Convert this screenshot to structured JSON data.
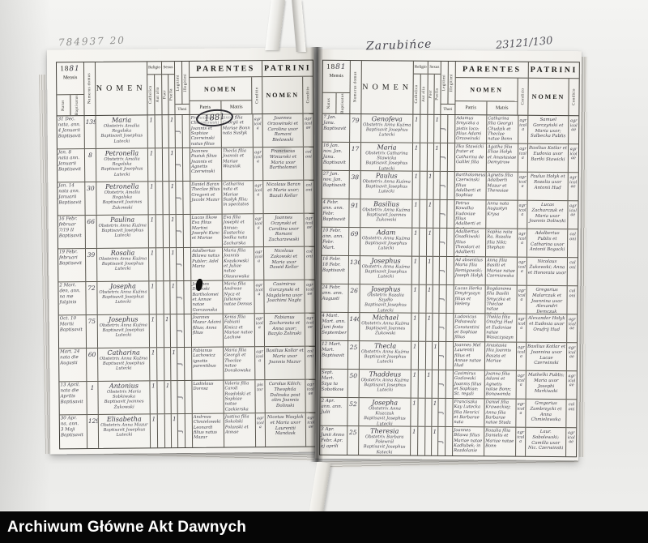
{
  "footer": {
    "label": "Archiwum Główne Akt Dawnych"
  },
  "annotations": {
    "pencil_number": "784937  20",
    "place_title": "Zarubińce",
    "page_number": "23121/130",
    "year_circled": "1881"
  },
  "register_header": {
    "year_printed": "18",
    "year_hw": "81",
    "mensis": "Mensis",
    "natus": "Natus",
    "baptisatus": "Baptisatus",
    "numerus_domus": "Numerus domus",
    "nomen": "NOMEN",
    "religio": "Religio",
    "catholica": "Catholica",
    "aut_alia": "Aut alia",
    "sexus": "Sexus",
    "puer": "Puer",
    "puella": "Puella",
    "thori": "Thori",
    "legitimi": "Legitimi",
    "illegitimi": "Illegitimi",
    "parentes": "PARENTES",
    "parentes_nomen": "NOMEN",
    "patris": "Patris",
    "matris": "Matris",
    "conditio": "Conditio",
    "patrini": "PATRINI",
    "patrini_nomen": "NOMEN",
    "conditio2": "Conditio"
  },
  "marks": {
    "religio": "1",
    "sexus": "1",
    "thori": "ʃ"
  },
  "pages": {
    "left": {
      "rows": [
        {
          "date": "31 Dec.\nnata, ann.\n4 Januarii\nBaptisavit",
          "domus": "139",
          "name": "Maria",
          "obst": "Obstetrix Amalia Rogalska",
          "bapt": "Baptisavit Josephus Lutecki",
          "sexus": "puella",
          "patris": "Franciscus Chwastowski Joannis et Sophiae Czerwinski natus filius",
          "matris": "Anna filia Georgii et Mariae Bonn nata Susłyk",
          "cond1": "agricola",
          "patrini": "Joannes Orzowinski et Carolina uxor Romani Bielawski",
          "cond2": "agricolae"
        },
        {
          "date": "Jan. 8\nnata ann.\nJanuarii\nBaptisavit",
          "domus": "8",
          "name": "Petronella",
          "obst": "Obstetrix Amalia Rogalska",
          "bapt": "Baptisavit Josephus Lutecki",
          "sexus": "puella",
          "patris": "Joannes Paziuk filius Joannis et Agnetis Czerwinski",
          "matris": "Thecla filia Joannis et Mariae Wozniak",
          "cond1": "agricola",
          "patrini": "Franciscus Winiarski et Maria uxor Bartholomei",
          "cond2": "coloni"
        },
        {
          "date": "Jan. 14\nnata ann.\nJanuarii\nBaptisavit",
          "domus": "30",
          "name": "Petronella",
          "obst": "Obstetrix Amalia Rogalska",
          "bapt": "Baptisavit Joannes Żukowski",
          "sexus": "puella",
          "patris": "Daniel Baran Theclae filius Gregorii et Jacobi Mazur",
          "matris": "Catharina nata et Mariae Susłyk filia; in spectatos",
          "cond1": "agricola",
          "patrini": "Nicolaus Baran et Maria uxor; Bazali Kellar",
          "cond2": "coloni"
        },
        {
          "date": "16 Febr.\nfebruar\n7/19 II\nBaptisavit",
          "domus": "66",
          "name": "Paulina",
          "obst": "Obstetrix Anna Kuźma",
          "bapt": "Baptisavit Josephus Lutecki",
          "sexus": "puella",
          "patris": "Lucas Ilkow Eva filius Martini Josephi Kunc et Mariae",
          "matris": "Eva filia Josephi et Annae; Eustachia bedka nata Zacharska",
          "cond1": "agricola",
          "patrini": "Joannes Oczynski et Carolina uxor Romani Zacharzewski",
          "cond2": "agricolae"
        },
        {
          "date": "19 Febr.\nfebruari\nBaptisavit",
          "domus": "39",
          "name": "Rosalia",
          "obst": "Obstetrix Anna Kuźma",
          "bapt": "Baptisavit Josephus Lutecki",
          "sexus": "puella",
          "patris": "Adalbertus Bilawa natus Publer; Adel Maria",
          "matris": "Maria filia Joannis Kozakowski et Juliae natae Olesnowska",
          "cond1": "agricola",
          "patrini": "Nicolaus Zakowski et Maria uxor Dawid Kellar",
          "cond2": "coloni"
        },
        {
          "date": "2 Mart.\nden, ann.\nna me\nfulginis",
          "domus": "72",
          "name": "Josepha",
          "obst": "Obstetrix Anna Kuźma",
          "bapt": "Baptisavit Josephus Lutecki",
          "sexus": "puella",
          "patris": "Joannes Dolinski Bartholomei et Annae natae Gorczanska filius",
          "matris": "Maria filia Andreae Nycz et Julianae natae Demus",
          "cond1": "agricola",
          "patrini": "Casimirus Gorczynski et Magdalena uxor Joachimi Nagła",
          "cond2": "agricolae"
        },
        {
          "date": "Oct. 10\nMartii\nBaptisavit",
          "domus": "75",
          "name": "Josephus",
          "obst": "Obstetrix Anna Kuźma",
          "bapt": "Baptisavit Josephus Lutecki",
          "sexus": "puer",
          "patris": "Joannes Mazur Adami filius; Anna filius",
          "matris": "Xenia filia Fabiani Kmicz et Mariae natae Lachow",
          "cond1": "agricola",
          "patrini": "Fabianus Zacharzata et Anna uxor; Bazylo Żolinski",
          "cond2": "agricolae"
        },
        {
          "date": "Mart. 24\nnata die\nAugusti",
          "domus": "60",
          "name": "Catharina",
          "obst": "Obstetrix Anna Kuźma",
          "bapt": "Baptisavit Josephus Lutecki",
          "sexus": "puella",
          "patris": "Fabianus Lachowicz ignotis parentibus",
          "matris": "Maria filia Georgii et Theclae natae Dorakowska",
          "cond1": "agricola",
          "patrini": "Basilius Kollar et Maria uxor Joannis Mazur",
          "cond2": "coloni"
        },
        {
          "date": "13 April.\nnata die\nAprilis\nBaptisavit",
          "domus": "1",
          "name": "Antonius",
          "obst": "Obstetrix Maria Sobkiwska",
          "bapt": "Baptisavit Joannes Żukowski",
          "sexus": "puer",
          "patris": "Ladislaus Dorosz",
          "matris": "Valeria filia Caroli Rozdolski et Sophiae natae Czekierska",
          "cond1": "pistor",
          "patrini": "Carolus Kilich; Theophila Dolinska post olim Joannis Dolinski",
          "cond2": "agricolae"
        },
        {
          "date": "30 Apr.\nna, ann.\n3 Maji\nBaptisavit",
          "domus": "129",
          "name": "Elisabetha",
          "obst": "Obstetrix Anna Mazur",
          "bapt": "Baptisavit Josephus Lutecki",
          "sexus": "puella",
          "patris": "Andreas Chmielowski Leonardi filius natus Mazur",
          "matris": "Justina filia Sokolski Polanski et Annae",
          "cond1": "agricola",
          "patrini": "Nicetas Wasylak et Maria uxor Laurentii Mandask",
          "cond2": "agricolae"
        }
      ]
    },
    "right": {
      "rows": [
        {
          "date": "7 Jan.\nJanu.\nBaptisavit",
          "domus": "79",
          "name": "Genofeva",
          "obst": "Obstetrix Anna Kuźma",
          "bapt": "Baptisavit Josephus Lutecki",
          "sexus": "puella",
          "patris": "Adamus Smyczka a pistis loco; filius Adami Orzowinski",
          "matris": "Catharina filia Georgii Chudzik et Theclae natae Bonn",
          "cond1": "agricola",
          "patrini": "Samuel Gorczyński et Maria uxor; Salbecka Publis",
          "cond2": "agricolae"
        },
        {
          "date": "16 Jan.\nnov. Jan.\nJanu.\nBaptisavit",
          "domus": "17",
          "name": "Maria",
          "obst": "Obstetrix Catharina Stawicka",
          "bapt": "Baptisavit Josephus Lutecki",
          "sexus": "puella",
          "patris": "Ilko Stawicki frater et Catharina de Galilei filia",
          "matris": "Agatha filia Eliae Hołyk et Anastasiae Demytrow",
          "cond1": "agricola",
          "patrini": "Basilius Kotlar et Eudoxia uxor Bartki Stawicki",
          "cond2": "agricolae"
        },
        {
          "date": "27 Jan.\nnov. Jan.\nBaptisavit",
          "domus": "38",
          "name": "Paulus",
          "obst": "Obstetrix Anna Kuźma",
          "bapt": "Baptisavit Josephus Lutecki",
          "sexus": "puer",
          "patris": "Bartholomeus Czerwinski filius Adalberti et Sophiae",
          "matris": "Agnetis filia Adalberti Mazur et Theresiae",
          "cond1": "agricola",
          "patrini": "Paulus Hołyk et Rozalia uxor Antonii Hud",
          "cond2": "agricolae"
        },
        {
          "date": "4 Febr.\nann. ann.\nFebr.\nBaptisavit",
          "domus": "91",
          "name": "Basilius",
          "obst": "Obstetrix Anna Kuźma",
          "bapt": "Baptisavit Joannes Żukowski",
          "sexus": "puer",
          "patris": "Petrus Kowalko Eudoxiae filius Adalberti et Catharinae; daniłowa filius",
          "matris": "Anna nata Augustyn Krysa",
          "cond1": "agricola",
          "patrini": "Lucas Zacharczuk et Maria uxor Joannis Doliwski",
          "cond2": "agricolae"
        },
        {
          "date": "10 Febr.\nann. ann.\nFebr. Mart.",
          "domus": "69",
          "name": "Adam",
          "obst": "Obstetrix Anna Kuźma",
          "bapt": "Baptisavit Josephus Lutecki",
          "sexus": "puer",
          "patris": "Adalbertus Osadkiwski filius Theodori et Adalberti Caroli",
          "matris": "Sophia nata Ra, Rozalia filia Nikt; Stephan",
          "cond1": "agricola",
          "patrini": "Adalbertus Publis et Catharina uxor Antonii Bogacki",
          "cond2": "coloni"
        },
        {
          "date": "16 Febr.\n18 Febr.\nBaptisavit",
          "domus": "130",
          "name": "Josephus",
          "obst": "Obstetrix Anna Kuźma",
          "bapt": "Baptisavit Josephus Lutecki",
          "sexus": "puer",
          "patris": "Ad absentius Maria filia Remigowski; Joseph Hołyk",
          "matris": "Anna filia Basilii et Mariae natae Czerniawska",
          "cond1": "agricola",
          "patrini": "Nicolaus Żukowski; Anna et Honorata uxor",
          "cond2": "coloni"
        },
        {
          "date": "24 Febr.\nann. ann.\nAugusti",
          "domus": "26",
          "name": "Josephus",
          "obst": "Obstetrix Rozalia Szydło",
          "bapt": "Baptisavit Josephus Lutecki",
          "sexus": "puer",
          "patris": "Lucas Herka Dmytryszyn filius et Heleny",
          "matris": "Bogdanowa filia Basilii Smyczka et Theclae natae Winiarska",
          "cond1": "agricola",
          "patrini": "Gregorius Malarczuk et Joannina uxor Alexandri Demczuk",
          "cond2": "coloni"
        },
        {
          "date": "4 Mart.\nMart. ann.\nJuni festa\nSeptember",
          "domus": "140",
          "name": "Michael",
          "obst": "Obstetrix Anna Kuźma",
          "bapt": "Baptisavit Joannes Żukowski",
          "sexus": "puer",
          "patris": "Ludovicus Pidsawala Constantini et Sophiae filius",
          "matris": "Thekla filia Onufryj Hud et Eudoxiae natae Waszczyszyn",
          "cond1": "agricola",
          "patrini": "Alexander Hołyk et Eudoxia uxor Onufrij Hud",
          "cond2": "agricolae"
        },
        {
          "date": "12 Mart.\nMart.\nBaptisavit",
          "domus": "25",
          "name": "Thecla",
          "obst": "Obstetrix Anna Kuźma",
          "bapt": "Baptisavit Josephus Lutecki",
          "sexus": "puella",
          "patris": "Joannes Mel Laurentii filius et Annae natae Hud",
          "matris": "Anastasia filia Joannis Baszta et Mariae",
          "cond1": "agricola",
          "patrini": "Basilius Kotlar et Joannina uxor Lucae Czerwinski",
          "cond2": "agricolae"
        },
        {
          "date": "Sept. Mart.\nSzya ta\nSobotkow",
          "domus": "50",
          "name": "Thaddeus",
          "obst": "Obstetrix Anna Kuźma",
          "bapt": "Baptisavit Josephus Lutecki",
          "sexus": "puer",
          "patris": "Casimirus Gozlowski Joannis filius et Sophiae; St. regali",
          "matris": "Joanna filia Adami et Agnetis natae Bonn; Bonawenda",
          "cond1": "agricola",
          "patrini": "Mathelki Publis; Maria uxor Josephi Markiwski",
          "cond2": "agricolae"
        },
        {
          "date": "2 Apr.\nann. ann.\nJulii",
          "domus": "52",
          "name": "Josepha",
          "obst": "Obstetrix Anna Kiszczuk",
          "bapt": "Baptisavit Josephus Lutecki",
          "sexus": "puella",
          "patris": "Franciszka Kay Lutecka filia Henrici et Barbarae nata",
          "matris": "Daniel filia Kraweckiej; Anna filia Barbarae natae Studz",
          "cond1": "agricola",
          "patrini": "Gregorius Zambrzycki et Anna Chmielowska",
          "cond2": "coloni"
        },
        {
          "date": "3 Apr.\nJunii Anno\nFebr. Apr.\nej aprili",
          "domus": "25",
          "name": "Theresia",
          "obst": "Obstetrix Barbara Połewról",
          "bapt": "Baptisavit Josephus Kotecki",
          "sexus": "puella",
          "patris": "Joannes Bilawa filius Mariae natae Kadłubek; in Rozdolanie",
          "matris": "Rozalia filia Danielis et Mariae natae Bonn",
          "cond1": "agricola",
          "patrini": "Laur. Sobolewski; Camilla uxor Nic. Czerwinski",
          "cond2": "agricolae"
        }
      ]
    }
  }
}
